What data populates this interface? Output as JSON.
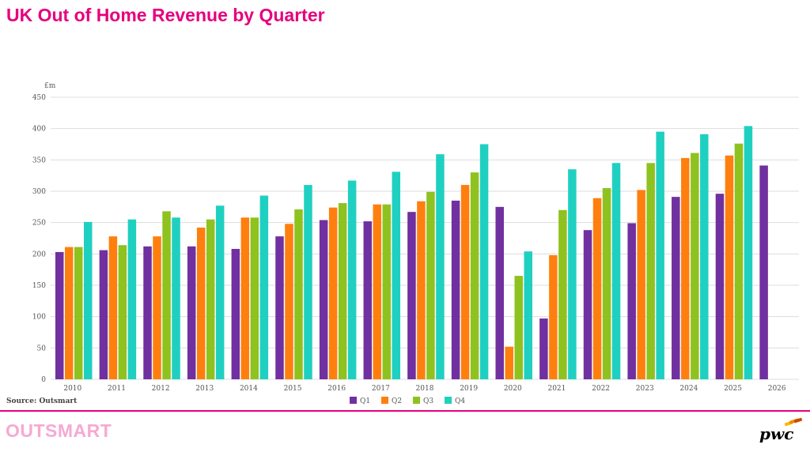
{
  "header": {
    "title": "UK Out of Home Revenue by Quarter"
  },
  "footer": {
    "source": "Source: Outsmart",
    "brand_left": "OUTSMART",
    "brand_right": "pwc"
  },
  "colors": {
    "title": "#e6007e",
    "q1": "#7030a0",
    "q2": "#ff7f0e",
    "q3": "#8ec21f",
    "q4": "#1fd0c1",
    "grid": "#dddddd"
  },
  "chart_data": {
    "type": "bar",
    "ylabel": "£m",
    "ylim": [
      0,
      450
    ],
    "yticks": [
      0,
      50,
      100,
      150,
      200,
      250,
      300,
      350,
      400,
      450
    ],
    "grid": true,
    "legend_position": "bottom-center",
    "categories": [
      "2010",
      "2011",
      "2012",
      "2013",
      "2014",
      "2015",
      "2016",
      "2017",
      "2018",
      "2019",
      "2020",
      "2021",
      "2022",
      "2023",
      "2024",
      "2025",
      "2026"
    ],
    "series": [
      {
        "name": "Q1",
        "values": [
          203,
          206,
          212,
          212,
          208,
          228,
          254,
          252,
          267,
          285,
          275,
          97,
          238,
          249,
          291,
          296,
          341
        ]
      },
      {
        "name": "Q2",
        "values": [
          211,
          228,
          228,
          242,
          258,
          248,
          274,
          279,
          284,
          310,
          52,
          198,
          289,
          302,
          353,
          357,
          null
        ]
      },
      {
        "name": "Q3",
        "values": [
          211,
          214,
          268,
          255,
          258,
          271,
          281,
          279,
          299,
          330,
          165,
          270,
          305,
          345,
          361,
          376,
          null
        ]
      },
      {
        "name": "Q4",
        "values": [
          251,
          255,
          258,
          277,
          293,
          310,
          317,
          331,
          359,
          375,
          204,
          335,
          345,
          395,
          391,
          404,
          null
        ]
      }
    ]
  }
}
